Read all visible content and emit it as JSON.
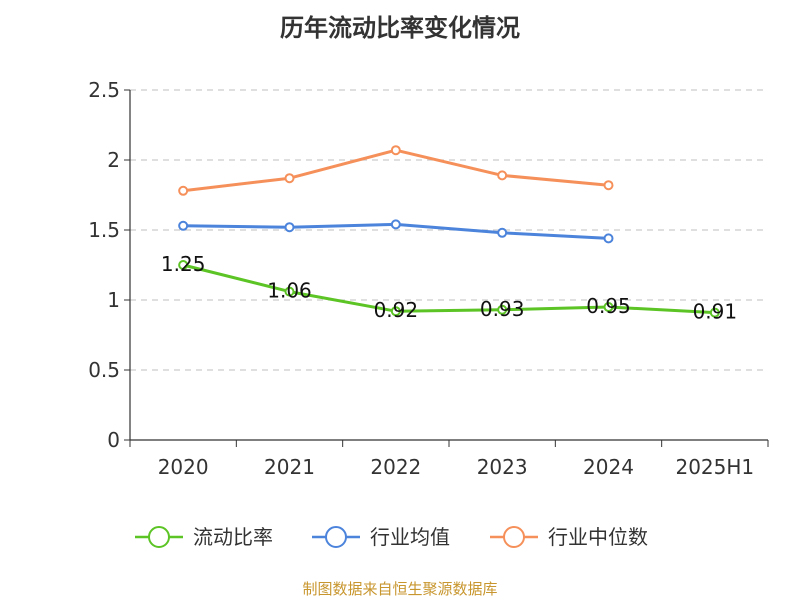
{
  "chart_data": {
    "type": "line",
    "title": "历年流动比率变化情况",
    "categories": [
      "2020",
      "2021",
      "2022",
      "2023",
      "2024",
      "2025H1"
    ],
    "ylim": [
      0,
      2.5
    ],
    "yticks": [
      "0",
      "0.5",
      "1",
      "1.5",
      "2",
      "2.5"
    ],
    "grid": true,
    "legend_position": "bottom",
    "series": [
      {
        "name": "流动比率",
        "color": "#5cc425",
        "values": [
          1.25,
          1.06,
          0.92,
          0.93,
          0.95,
          0.91
        ],
        "labels": [
          "1.25",
          "1.06",
          "0.92",
          "0.93",
          "0.95",
          "0.91"
        ]
      },
      {
        "name": "行业均值",
        "color": "#4c84dc",
        "values": [
          1.53,
          1.52,
          1.54,
          1.48,
          1.44,
          null
        ]
      },
      {
        "name": "行业中位数",
        "color": "#f6905a",
        "values": [
          1.78,
          1.87,
          2.07,
          1.89,
          1.82,
          null
        ]
      }
    ]
  },
  "source": "制图数据来自恒生聚源数据库"
}
